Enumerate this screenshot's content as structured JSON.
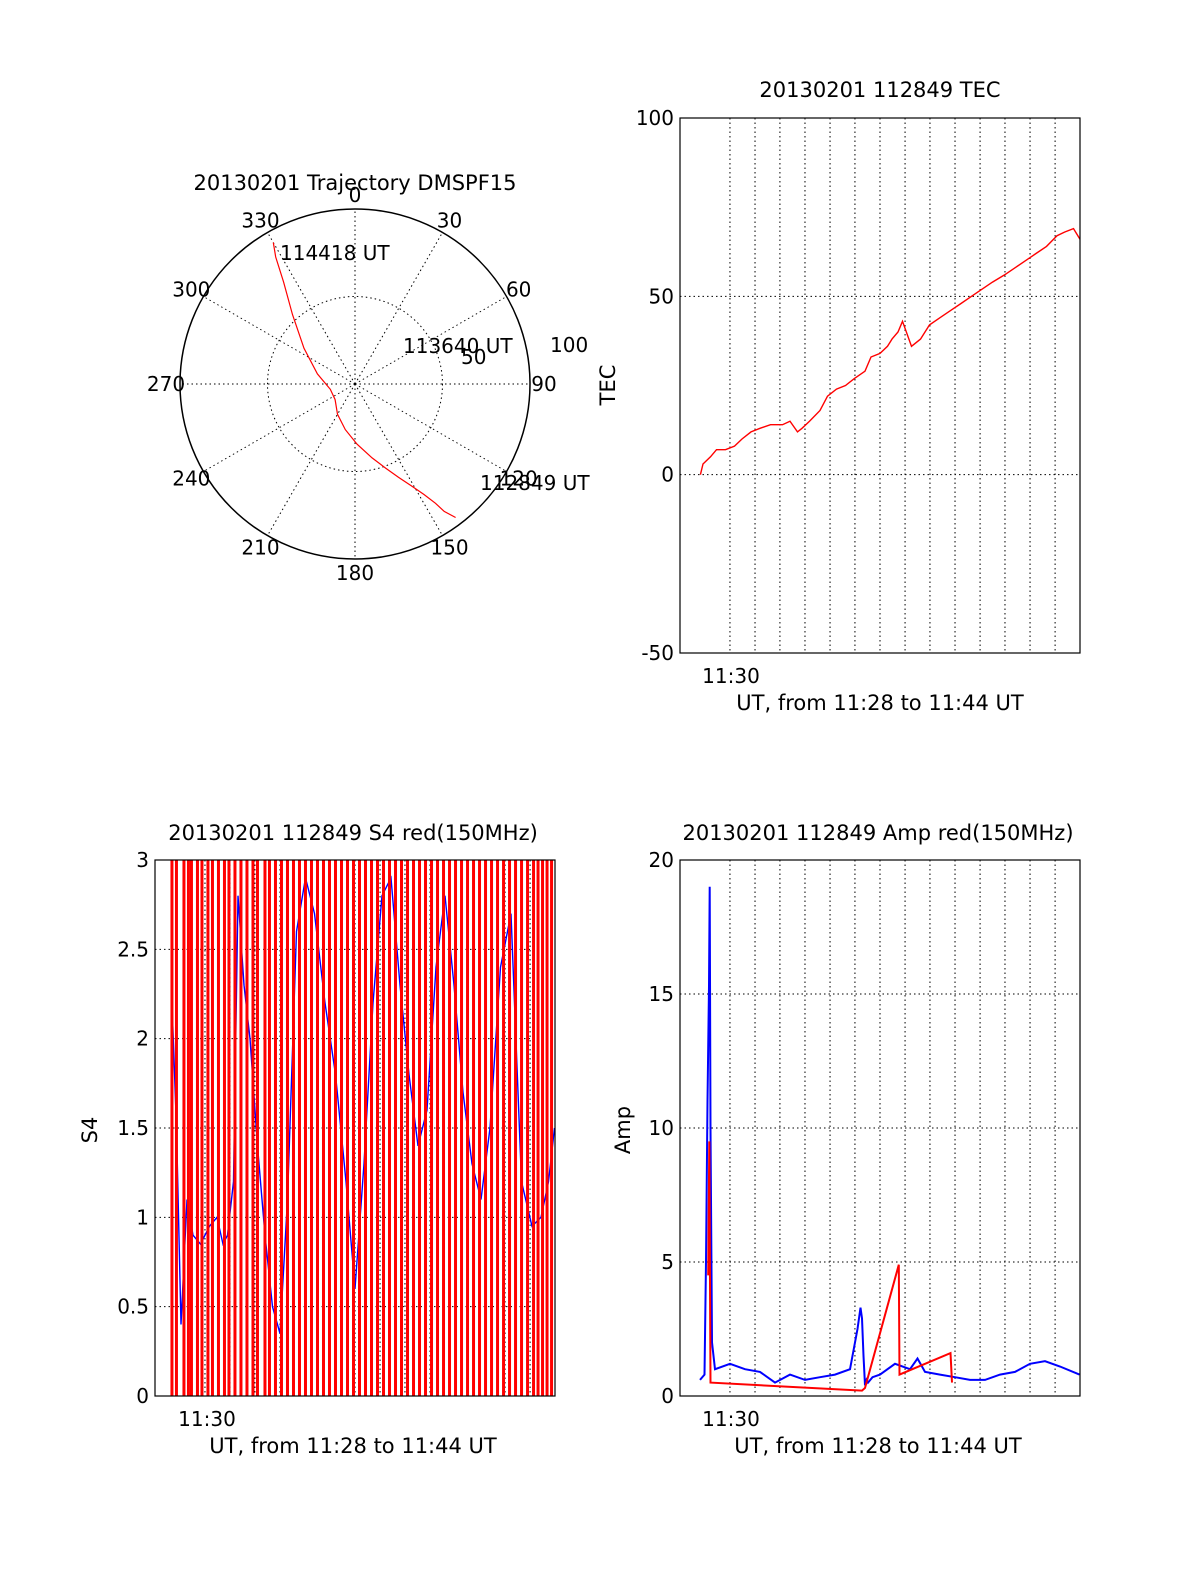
{
  "colors": {
    "red": "#ff0000",
    "blue": "#0000ff",
    "black": "#000000",
    "grid": "#000000"
  },
  "chart_data": [
    {
      "type": "scatter",
      "subtype": "polar-trajectory",
      "title": "20130201 Trajectory DMSPF15",
      "angle_labels": [
        "0",
        "30",
        "60",
        "90",
        "120",
        "150",
        "180",
        "210",
        "240",
        "270",
        "300",
        "330"
      ],
      "radial_labels": [
        "50",
        "100"
      ],
      "rlim": [
        0,
        100
      ],
      "annotations": [
        "114418 UT",
        "113640 UT",
        "112849 UT"
      ],
      "trajectory": {
        "azimuth_deg": [
          143,
          145,
          146,
          148,
          151,
          155,
          160,
          167,
          178,
          192,
          210,
          232,
          258,
          285,
          305,
          318,
          325,
          328,
          330
        ],
        "zenith_deg": [
          86,
          80,
          74,
          67,
          60,
          53,
          46,
          39,
          31,
          24,
          18,
          13,
          13,
          20,
          32,
          48,
          64,
          77,
          84
        ]
      }
    },
    {
      "type": "line",
      "title": "20130201 112849 TEC",
      "ylabel": "TEC",
      "xlabel": "UT, from 11:28 to 11:44 UT",
      "x_tick_label": "11:30",
      "xlim": [
        11.4667,
        11.7333
      ],
      "ylim": [
        -50,
        100
      ],
      "y_ticks": [
        -50,
        0,
        50,
        100
      ],
      "grid": true,
      "series": [
        {
          "color": "#ff0000",
          "x": [
            11.4803,
            11.482,
            11.487,
            11.491,
            11.497,
            11.503,
            11.508,
            11.514,
            11.52,
            11.527,
            11.535,
            11.54,
            11.545,
            11.548,
            11.553,
            11.56,
            11.565,
            11.571,
            11.577,
            11.583,
            11.59,
            11.594,
            11.6,
            11.605,
            11.608,
            11.612,
            11.615,
            11.621,
            11.627,
            11.633,
            11.64,
            11.647,
            11.654,
            11.661,
            11.668,
            11.675,
            11.683,
            11.69,
            11.697,
            11.704,
            11.711,
            11.718,
            11.723,
            11.729,
            11.7333
          ],
          "y": [
            0,
            3,
            5,
            7,
            7,
            8,
            10,
            12,
            13,
            14,
            14,
            15,
            12,
            13,
            15,
            18,
            22,
            24,
            25,
            27,
            29,
            33,
            34,
            36,
            38,
            40,
            43,
            36,
            38,
            42,
            44,
            46,
            48,
            50,
            52,
            54,
            56,
            58,
            60,
            62,
            64,
            67,
            68,
            69,
            66
          ]
        }
      ]
    },
    {
      "type": "line",
      "title": "20130201 112849 S4 red(150MHz)",
      "ylabel": "S4",
      "xlabel": "UT, from 11:28 to 11:44 UT",
      "x_tick_label": "11:30",
      "xlim": [
        11.4667,
        11.7333
      ],
      "ylim": [
        0,
        3
      ],
      "y_ticks": [
        "0",
        "0.5",
        "1",
        "1.5",
        "2",
        "2.5",
        "3"
      ],
      "grid": true,
      "series": [
        {
          "color": "#0000ff",
          "x": [
            11.478,
            11.481,
            11.484,
            11.488,
            11.492,
            11.497,
            11.503,
            11.508,
            11.512,
            11.515,
            11.519,
            11.522,
            11.526,
            11.53,
            11.535,
            11.54,
            11.545,
            11.55,
            11.555,
            11.561,
            11.567,
            11.573,
            11.58,
            11.587,
            11.594,
            11.6,
            11.606,
            11.612,
            11.618,
            11.624,
            11.63,
            11.636,
            11.642,
            11.648,
            11.654,
            11.66,
            11.666,
            11.672,
            11.678,
            11.684,
            11.69,
            11.697,
            11.704,
            11.711,
            11.718,
            11.724,
            11.729,
            11.733
          ],
          "y": [
            2.2,
            1.5,
            0.4,
            1.1,
            0.9,
            0.85,
            0.95,
            1.0,
            0.85,
            0.9,
            1.2,
            2.8,
            2.3,
            2.0,
            1.4,
            0.9,
            0.5,
            0.35,
            1.1,
            2.6,
            2.9,
            2.7,
            2.2,
            1.8,
            1.2,
            0.6,
            1.3,
            2.2,
            2.8,
            2.9,
            2.3,
            1.8,
            1.4,
            1.6,
            2.4,
            2.8,
            2.3,
            1.7,
            1.3,
            1.1,
            1.5,
            2.4,
            2.7,
            1.2,
            0.95,
            1.0,
            1.2,
            1.5
          ]
        },
        {
          "color": "#ff0000",
          "spikes_x": [
            11.478,
            11.481,
            11.486,
            11.489,
            11.491,
            11.495,
            11.498,
            11.502,
            11.505,
            11.509,
            11.513,
            11.516,
            11.52,
            11.524,
            11.528,
            11.532,
            11.535,
            11.54,
            11.543,
            11.547,
            11.551,
            11.555,
            11.559,
            11.563,
            11.567,
            11.571,
            11.575,
            11.579,
            11.583,
            11.587,
            11.591,
            11.595,
            11.599,
            11.603,
            11.607,
            11.611,
            11.615,
            11.619,
            11.623,
            11.627,
            11.631,
            11.635,
            11.639,
            11.643,
            11.647,
            11.651,
            11.655,
            11.659,
            11.663,
            11.667,
            11.671,
            11.675,
            11.679,
            11.683,
            11.687,
            11.691,
            11.695,
            11.699,
            11.703,
            11.707,
            11.711,
            11.715,
            11.719,
            11.722,
            11.725,
            11.728,
            11.731
          ],
          "spike_max": 3
        }
      ]
    },
    {
      "type": "line",
      "title": "20130201 112849 Amp red(150MHz)",
      "ylabel": "Amp",
      "xlabel": "UT, from 11:28 to 11:44 UT",
      "x_tick_label": "11:30",
      "xlim": [
        11.4667,
        11.7333
      ],
      "ylim": [
        0,
        20
      ],
      "y_ticks": [
        0,
        5,
        10,
        15,
        20
      ],
      "grid": true,
      "series": [
        {
          "color": "#0000ff",
          "x": [
            11.48,
            11.483,
            11.484,
            11.485,
            11.486,
            11.4865,
            11.487,
            11.488,
            11.49,
            11.5,
            11.51,
            11.52,
            11.53,
            11.54,
            11.55,
            11.56,
            11.57,
            11.58,
            11.585,
            11.587,
            11.588,
            11.589,
            11.59,
            11.591,
            11.592,
            11.595,
            11.6,
            11.61,
            11.62,
            11.625,
            11.63,
            11.64,
            11.65,
            11.66,
            11.67,
            11.68,
            11.69,
            11.7,
            11.71,
            11.72,
            11.733
          ],
          "y": [
            0.6,
            0.8,
            5,
            11,
            15.3,
            19,
            10,
            2,
            1.0,
            1.2,
            1.0,
            0.9,
            0.5,
            0.8,
            0.6,
            0.7,
            0.8,
            1.0,
            2.5,
            3.3,
            2.9,
            1.5,
            0.4,
            0.6,
            0.5,
            0.7,
            0.8,
            1.2,
            1.0,
            1.4,
            0.9,
            0.8,
            0.7,
            0.6,
            0.6,
            0.8,
            0.9,
            1.2,
            1.3,
            1.1,
            0.8
          ]
        },
        {
          "color": "#ff0000",
          "x": [
            11.4855,
            11.4862,
            11.487,
            11.588,
            11.59,
            11.6125,
            11.613,
            11.647,
            11.648
          ],
          "y": [
            4.5,
            9.5,
            0.5,
            0.2,
            0.3,
            4.9,
            0.8,
            1.6,
            0.5
          ]
        }
      ]
    }
  ]
}
